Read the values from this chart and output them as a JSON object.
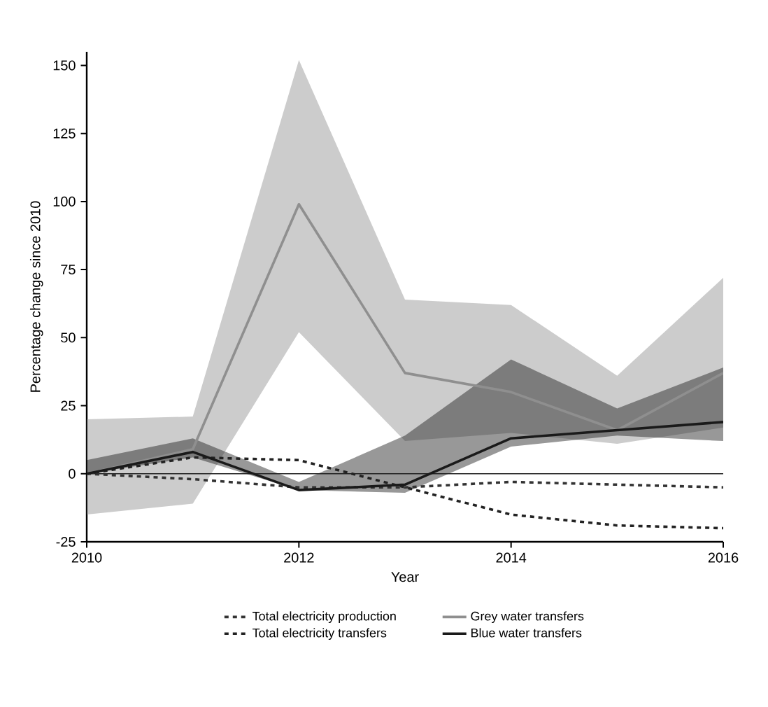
{
  "chart_data": {
    "type": "line",
    "xlabel": "Year",
    "ylabel": "Percentage change since 2010",
    "x": [
      2010,
      2011,
      2012,
      2013,
      2014,
      2015,
      2016
    ],
    "xlim": [
      2010,
      2016
    ],
    "xticks": [
      2010,
      2012,
      2014,
      2016
    ],
    "ylim": [
      -25,
      155
    ],
    "yticks": [
      -25,
      0,
      25,
      50,
      75,
      100,
      125,
      150
    ],
    "legend": "bottom",
    "ref_lines": [
      {
        "axis": "y",
        "value": 0,
        "color": "#222222"
      }
    ],
    "series": [
      {
        "name": "Total electricity production",
        "color": "#333333",
        "line_style": "dashed",
        "values": [
          0,
          -2,
          -5,
          -5,
          -3,
          -4,
          -5
        ]
      },
      {
        "name": "Total electricity transfers",
        "color": "#222222",
        "line_style": "dashed",
        "values": [
          0,
          6,
          5,
          -5,
          -15,
          -19,
          -20
        ]
      },
      {
        "name": "Grey water transfers",
        "color": "#8f8f8f",
        "line_style": "solid",
        "values": [
          0,
          9,
          99,
          37,
          30,
          16,
          37
        ],
        "lower": [
          -15,
          -11,
          52,
          12,
          15,
          11,
          17
        ],
        "upper": [
          20,
          21,
          152,
          64,
          62,
          36,
          72
        ]
      },
      {
        "name": "Blue water transfers",
        "color": "#1a1a1a",
        "line_style": "solid",
        "values": [
          0,
          8,
          -6,
          -4,
          13,
          16,
          19
        ],
        "lower": [
          0,
          6,
          -6,
          -7,
          10,
          14,
          12
        ],
        "upper": [
          5,
          13,
          -3,
          14,
          42,
          24,
          39
        ]
      }
    ]
  }
}
